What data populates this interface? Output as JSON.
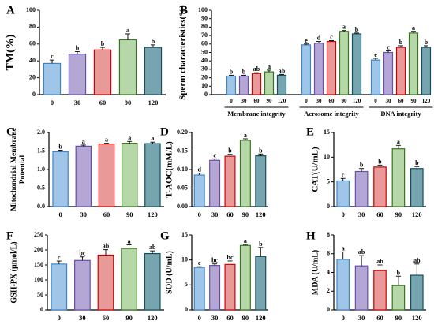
{
  "chart_data": [
    {
      "panel": "A",
      "type": "bar",
      "categories": [
        "0",
        "30",
        "60",
        "90",
        "120"
      ],
      "values": [
        37,
        48,
        53,
        65,
        56
      ],
      "errors": [
        4,
        3,
        3,
        7,
        3
      ],
      "letters": [
        "c",
        "b",
        "b",
        "a",
        "b"
      ],
      "ylabel": "TM(%)",
      "ylim": [
        0,
        100
      ],
      "yticks": [
        0,
        20,
        40,
        60,
        80,
        100
      ],
      "colors": [
        "#9fc5e8",
        "#b4a7d6",
        "#ea9999",
        "#b6d7a8",
        "#76a5af"
      ],
      "edge_colors": [
        "#3d85c6",
        "#674ea7",
        "#cc0000",
        "#38761d",
        "#134f5c"
      ]
    },
    {
      "panel": "B",
      "type": "bar",
      "categories": [
        "0",
        "30",
        "60",
        "90",
        "120"
      ],
      "groups": [
        "Membrane integrity",
        "Acrosome integrity",
        "DNA integrity"
      ],
      "series": [
        {
          "values": [
            22,
            22,
            25,
            27,
            23
          ],
          "errors": [
            1,
            1,
            1,
            2,
            1
          ],
          "letters": [
            "b",
            "b",
            "ab",
            "a",
            "ab"
          ]
        },
        {
          "values": [
            59,
            61,
            63,
            75,
            72
          ],
          "errors": [
            1,
            2,
            1,
            1,
            1
          ],
          "letters": [
            "e",
            "d",
            "c",
            "a",
            "b"
          ]
        },
        {
          "values": [
            41,
            50,
            56,
            73,
            56
          ],
          "errors": [
            2,
            2,
            2,
            2,
            2
          ],
          "letters": [
            "e",
            "c",
            "b",
            "a",
            "b"
          ]
        }
      ],
      "ylabel": "Sperm characteristics(%)",
      "ylim": [
        0,
        100
      ],
      "yticks": [
        0,
        10,
        20,
        30,
        40,
        50,
        60,
        70,
        80,
        90,
        100
      ]
    },
    {
      "panel": "C",
      "type": "bar",
      "categories": [
        "0",
        "30",
        "60",
        "90",
        "120"
      ],
      "values": [
        1.48,
        1.63,
        1.69,
        1.71,
        1.7
      ],
      "errors": [
        0.04,
        0.03,
        0.02,
        0.05,
        0.04
      ],
      "letters": [
        "b",
        "a",
        "a",
        "a",
        "a"
      ],
      "ylabel": "Mitochondrial Membrane Potential",
      "ylim": [
        0,
        2.0
      ],
      "yticks": [
        0,
        0.5,
        1.0,
        1.5,
        2.0
      ],
      "yticklabels": [
        "0.0",
        "0.5",
        "1.0",
        "1.5",
        "2.0"
      ]
    },
    {
      "panel": "D",
      "type": "bar",
      "categories": [
        "0",
        "30",
        "60",
        "90",
        "120"
      ],
      "values": [
        0.085,
        0.125,
        0.136,
        0.179,
        0.137
      ],
      "errors": [
        0.005,
        0.004,
        0.005,
        0.004,
        0.005
      ],
      "letters": [
        "d",
        "c",
        "b",
        "a",
        "b"
      ],
      "ylabel": "T-AOC(mM/L)",
      "ylim": [
        0,
        0.2
      ],
      "yticks": [
        0,
        0.05,
        0.1,
        0.15,
        0.2
      ],
      "yticklabels": [
        "0.00",
        "0.05",
        "0.10",
        "0.15",
        "0.20"
      ]
    },
    {
      "panel": "E",
      "type": "bar",
      "categories": [
        "0",
        "30",
        "60",
        "90",
        "120"
      ],
      "values": [
        5.2,
        7.1,
        8.0,
        11.7,
        7.7
      ],
      "errors": [
        0.5,
        0.6,
        0.4,
        0.7,
        0.4
      ],
      "letters": [
        "c",
        "b",
        "b",
        "a",
        "b"
      ],
      "ylabel": "CAT(U/mL)",
      "ylim": [
        0,
        15
      ],
      "yticks": [
        0,
        5,
        10,
        15
      ],
      "yticklabels": [
        "0",
        "5",
        "10",
        "15"
      ]
    },
    {
      "panel": "F",
      "type": "bar",
      "categories": [
        "0",
        "30",
        "60",
        "90",
        "120"
      ],
      "values": [
        153,
        165,
        183,
        205,
        188
      ],
      "errors": [
        10,
        12,
        18,
        12,
        9
      ],
      "letters": [
        "c",
        "bc",
        "ab",
        "a",
        "ab"
      ],
      "ylabel": "GSH-PX (µmol/L)",
      "ylim": [
        0,
        250
      ],
      "yticks": [
        0,
        50,
        100,
        150,
        200,
        250
      ],
      "yticklabels": [
        "0",
        "50",
        "100",
        "150",
        "200",
        "250"
      ]
    },
    {
      "panel": "G",
      "type": "bar",
      "categories": [
        "0",
        "30",
        "60",
        "90",
        "120"
      ],
      "values": [
        8.5,
        8.9,
        9.1,
        12.9,
        10.7
      ],
      "errors": [
        0.15,
        0.3,
        0.7,
        0.2,
        1.8
      ],
      "letters": [
        "c",
        "bc",
        "bc",
        "a",
        "b"
      ],
      "ylabel": "SOD (U/mL)",
      "ylim": [
        0,
        15
      ],
      "yticks": [
        0,
        5,
        10,
        15
      ],
      "yticklabels": [
        "0",
        "5",
        "10",
        "15"
      ]
    },
    {
      "panel": "H",
      "type": "bar",
      "categories": [
        "0",
        "30",
        "60",
        "90",
        "120"
      ],
      "values": [
        5.4,
        4.7,
        4.2,
        2.6,
        3.7
      ],
      "errors": [
        0.8,
        1.1,
        0.6,
        1.0,
        1.2
      ],
      "letters": [
        "a",
        "ab",
        "ab",
        "b",
        "ab"
      ],
      "ylabel": "MDA (U/mL)",
      "ylim": [
        0,
        8
      ],
      "yticks": [
        0,
        2,
        4,
        6,
        8
      ],
      "yticklabels": [
        "0",
        "2",
        "4",
        "6",
        "8"
      ]
    }
  ]
}
